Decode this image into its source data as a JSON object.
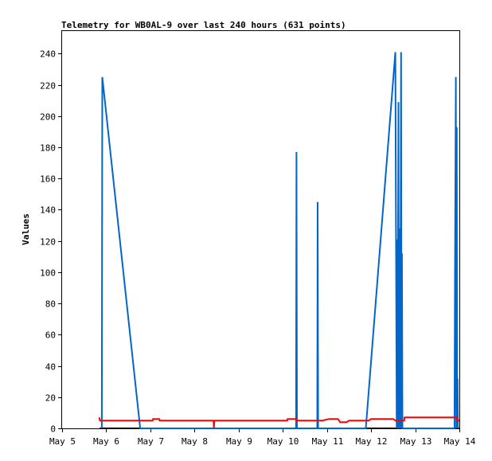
{
  "chart_data": {
    "type": "line",
    "title": "Telemetry for WB0AL-9 over last 240 hours (631 points)",
    "ylabel": "Values",
    "xlabel": "",
    "ylim": [
      0,
      255
    ],
    "xlim": [
      0,
      9
    ],
    "x_ticks": [
      {
        "x": 0,
        "label": "May 5"
      },
      {
        "x": 1,
        "label": "May 6"
      },
      {
        "x": 2,
        "label": "May 7"
      },
      {
        "x": 3,
        "label": "May 8"
      },
      {
        "x": 4,
        "label": "May 9"
      },
      {
        "x": 5,
        "label": "May 10"
      },
      {
        "x": 6,
        "label": "May 11"
      },
      {
        "x": 7,
        "label": "May 12"
      },
      {
        "x": 8,
        "label": "May 13"
      },
      {
        "x": 9,
        "label": "May 14"
      }
    ],
    "y_ticks": [
      0,
      20,
      40,
      60,
      80,
      100,
      120,
      140,
      160,
      180,
      200,
      220,
      240
    ],
    "grid": false,
    "series": [
      {
        "color": "#000000",
        "points": [
          [
            0.85,
            0
          ],
          [
            9,
            0
          ]
        ]
      },
      {
        "color": "#0066CC",
        "points": [
          [
            0.9,
            0
          ],
          [
            0.91,
            225
          ],
          [
            1.77,
            0
          ],
          [
            5.3,
            0
          ],
          [
            5.31,
            177
          ],
          [
            5.32,
            0
          ],
          [
            5.78,
            0
          ],
          [
            5.79,
            145
          ],
          [
            5.8,
            0
          ],
          [
            6.88,
            0
          ],
          [
            7.55,
            241
          ],
          [
            7.58,
            0
          ],
          [
            7.59,
            121
          ],
          [
            7.6,
            0
          ],
          [
            7.62,
            209
          ],
          [
            7.63,
            0
          ],
          [
            7.64,
            128
          ],
          [
            7.66,
            0
          ],
          [
            7.68,
            241
          ],
          [
            7.69,
            0
          ],
          [
            7.7,
            112
          ],
          [
            7.71,
            0
          ],
          [
            8.89,
            0
          ],
          [
            8.9,
            97
          ],
          [
            8.92,
            225
          ],
          [
            8.93,
            0
          ],
          [
            8.94,
            193
          ],
          [
            8.95,
            0
          ],
          [
            8.96,
            32
          ],
          [
            8.97,
            0
          ]
        ]
      },
      {
        "color": "#FF0000",
        "points": [
          [
            0.84,
            7
          ],
          [
            0.86,
            5
          ],
          [
            2.05,
            5
          ],
          [
            2.06,
            6
          ],
          [
            2.2,
            6
          ],
          [
            2.21,
            5
          ],
          [
            3.43,
            5
          ],
          [
            3.44,
            0
          ],
          [
            3.45,
            5
          ],
          [
            5.1,
            5
          ],
          [
            5.11,
            6
          ],
          [
            5.3,
            6
          ],
          [
            5.31,
            5
          ],
          [
            5.9,
            5
          ],
          [
            6.05,
            6
          ],
          [
            6.25,
            6
          ],
          [
            6.3,
            4
          ],
          [
            6.45,
            4
          ],
          [
            6.5,
            5
          ],
          [
            6.95,
            5
          ],
          [
            7.0,
            6
          ],
          [
            7.5,
            6
          ],
          [
            7.55,
            5
          ],
          [
            7.75,
            5
          ],
          [
            7.76,
            7
          ],
          [
            8.95,
            7
          ],
          [
            8.96,
            5
          ],
          [
            9.0,
            5
          ]
        ]
      }
    ]
  }
}
